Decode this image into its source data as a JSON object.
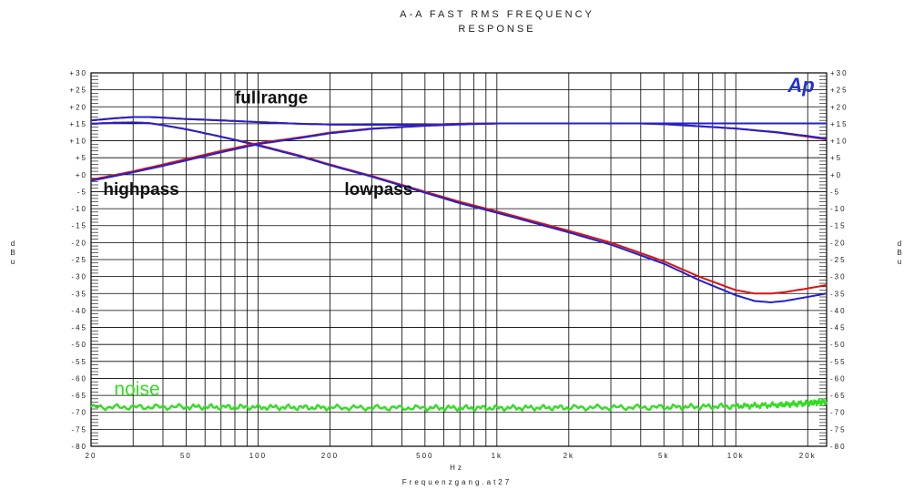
{
  "chart_data": {
    "type": "line",
    "title_lines": [
      "A-A FAST RMS FREQUENCY",
      "RESPONSE"
    ],
    "xlabel": "Hz",
    "ylabel": "dBu",
    "footer": "Frequenzgang.at27",
    "xscale": "log",
    "xlim": [
      20,
      24000
    ],
    "ylim": [
      -80,
      30
    ],
    "grid": true,
    "x_ticks": [
      {
        "value": 20,
        "label": "20"
      },
      {
        "value": 50,
        "label": "50"
      },
      {
        "value": 100,
        "label": "100"
      },
      {
        "value": 200,
        "label": "200"
      },
      {
        "value": 500,
        "label": "500"
      },
      {
        "value": 1000,
        "label": "1k"
      },
      {
        "value": 2000,
        "label": "2k"
      },
      {
        "value": 5000,
        "label": "5k"
      },
      {
        "value": 10000,
        "label": "10k"
      },
      {
        "value": 20000,
        "label": "20k"
      }
    ],
    "y_ticks": [
      {
        "value": 30,
        "label": "+30"
      },
      {
        "value": 25,
        "label": "+25"
      },
      {
        "value": 20,
        "label": "+20"
      },
      {
        "value": 15,
        "label": "+15"
      },
      {
        "value": 10,
        "label": "+10"
      },
      {
        "value": 5,
        "label": "+5"
      },
      {
        "value": 0,
        "label": "+0"
      },
      {
        "value": -5,
        "label": "-5"
      },
      {
        "value": -10,
        "label": "-10"
      },
      {
        "value": -15,
        "label": "-15"
      },
      {
        "value": -20,
        "label": "-20"
      },
      {
        "value": -25,
        "label": "-25"
      },
      {
        "value": -30,
        "label": "-30"
      },
      {
        "value": -35,
        "label": "-35"
      },
      {
        "value": -40,
        "label": "-40"
      },
      {
        "value": -45,
        "label": "-45"
      },
      {
        "value": -50,
        "label": "-50"
      },
      {
        "value": -55,
        "label": "-55"
      },
      {
        "value": -60,
        "label": "-60"
      },
      {
        "value": -65,
        "label": "-65"
      },
      {
        "value": -70,
        "label": "-70"
      },
      {
        "value": -75,
        "label": "-75"
      },
      {
        "value": -80,
        "label": "-80"
      }
    ],
    "series": [
      {
        "name": "fullrange",
        "color": "#dd1111",
        "x": [
          20,
          25,
          30,
          35,
          40,
          50,
          70,
          100,
          150,
          200,
          300,
          500,
          700,
          1000,
          2000,
          3000,
          4000,
          5000,
          7000,
          10000,
          15000,
          20000,
          24000
        ],
        "y": [
          16,
          16.6,
          17,
          17,
          16.8,
          16.4,
          16,
          15.5,
          15,
          14.8,
          14.7,
          14.7,
          15,
          15.1,
          15.1,
          15.1,
          15.1,
          14.9,
          14.3,
          13.6,
          12.4,
          11.2,
          10.4
        ]
      },
      {
        "name": "fullrange",
        "color": "#2222cc",
        "x": [
          20,
          25,
          30,
          35,
          40,
          50,
          70,
          100,
          150,
          200,
          300,
          500,
          700,
          1000,
          2000,
          3000,
          4000,
          5000,
          7000,
          10000,
          15000,
          20000,
          24000
        ],
        "y": [
          16,
          16.6,
          17,
          17,
          16.8,
          16.4,
          16,
          15.5,
          15,
          14.8,
          14.7,
          14.7,
          15,
          15.1,
          15.1,
          15.1,
          15.1,
          14.9,
          14.3,
          13.6,
          12.5,
          11.4,
          10.6
        ]
      },
      {
        "name": "lowpass",
        "color": "#dd1111",
        "x": [
          20,
          25,
          30,
          35,
          40,
          50,
          70,
          100,
          150,
          200,
          300,
          500,
          700,
          1000,
          2000,
          3000,
          5000,
          7000,
          10000,
          12000,
          14000,
          16000,
          20000,
          24000
        ],
        "y": [
          15,
          15.3,
          15.4,
          15.2,
          14.6,
          13.4,
          11.2,
          8.8,
          5.6,
          3,
          -0.4,
          -5,
          -8,
          -10.8,
          -16.5,
          -20,
          -25.5,
          -30,
          -34,
          -35,
          -35,
          -34.6,
          -33.5,
          -32.5
        ]
      },
      {
        "name": "lowpass",
        "color": "#2222cc",
        "x": [
          20,
          25,
          30,
          35,
          40,
          50,
          70,
          100,
          150,
          200,
          300,
          500,
          700,
          1000,
          2000,
          3000,
          5000,
          7000,
          10000,
          12000,
          14000,
          16000,
          20000,
          24000
        ],
        "y": [
          15,
          15.3,
          15.4,
          15.2,
          14.6,
          13.4,
          11.2,
          8.6,
          5.4,
          2.8,
          -0.6,
          -5.3,
          -8.4,
          -11.2,
          -17,
          -20.6,
          -26.2,
          -31,
          -35.5,
          -37.2,
          -37.6,
          -37.2,
          -36,
          -35
        ]
      },
      {
        "name": "highpass",
        "color": "#dd1111",
        "x": [
          20,
          30,
          40,
          50,
          70,
          100,
          150,
          200,
          300,
          500,
          700,
          1000,
          2000,
          24000
        ],
        "y": [
          -1.5,
          1,
          3,
          4.6,
          7,
          9.3,
          11,
          12.4,
          13.6,
          14.5,
          14.9,
          15.1,
          15.1,
          15.1
        ]
      },
      {
        "name": "highpass",
        "color": "#2222cc",
        "x": [
          20,
          30,
          40,
          50,
          70,
          100,
          150,
          200,
          300,
          500,
          700,
          1000,
          2000,
          24000
        ],
        "y": [
          -1.8,
          0.7,
          2.6,
          4.2,
          6.6,
          9,
          10.8,
          12.2,
          13.5,
          14.4,
          14.8,
          15.1,
          15.1,
          15.1
        ]
      },
      {
        "name": "noise",
        "color": "#33dd22",
        "x": [
          20,
          50,
          100,
          200,
          500,
          1000,
          2000,
          5000,
          10000,
          15000,
          20000,
          24000
        ],
        "y": [
          -68.5,
          -68.4,
          -68.5,
          -68.6,
          -68.7,
          -68.7,
          -68.6,
          -68.5,
          -68.2,
          -67.8,
          -67.3,
          -66.8
        ]
      }
    ],
    "annotations": [
      {
        "text": "fullrange",
        "x": 80,
        "y": 21,
        "color": "#111111"
      },
      {
        "text": "highpass",
        "x": 22.5,
        "y": -6,
        "color": "#111111"
      },
      {
        "text": "lowpass",
        "x": 230,
        "y": -6,
        "color": "#111111"
      },
      {
        "text": "noise",
        "x": 25,
        "y": -65,
        "color": "#33dd22"
      }
    ],
    "logo": "Ap"
  }
}
